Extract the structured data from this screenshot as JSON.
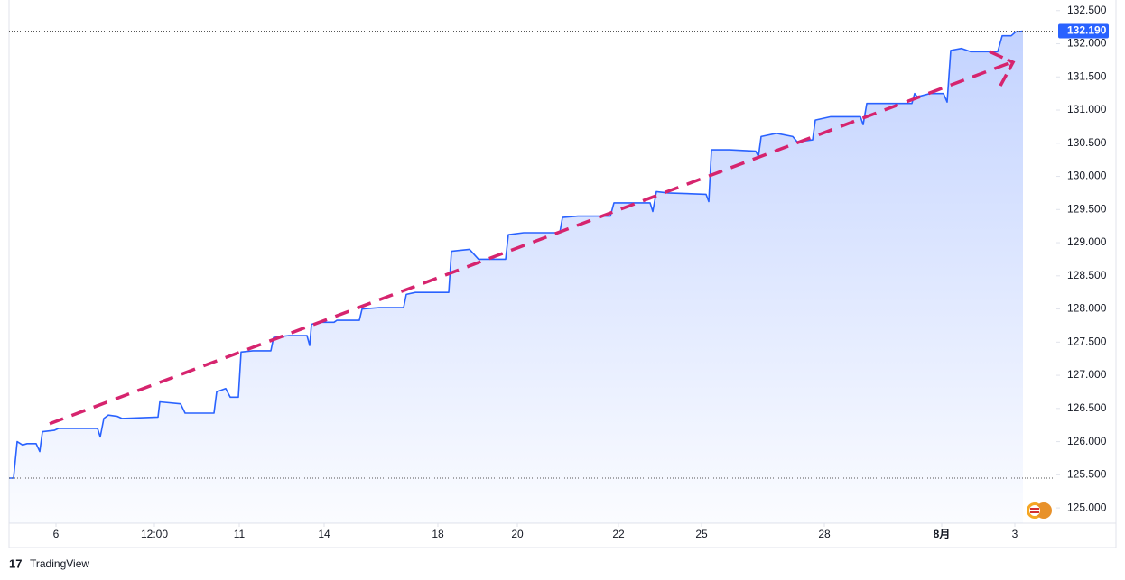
{
  "chart_data": {
    "type": "line",
    "color": "#2962ff",
    "x": [
      0,
      0.5,
      0.9,
      1.5,
      2,
      3,
      3.4,
      3.7,
      5,
      5.5,
      9.8,
      10.1,
      10.5,
      11,
      12,
      12.5,
      16.5,
      16.7,
      19,
      19.5,
      22.7,
      23,
      24,
      24.5,
      25.4,
      25.7,
      27,
      29,
      29.3,
      31,
      33,
      33.3,
      33.5,
      34.5,
      36,
      36.3,
      38.8,
      39.1,
      41,
      43.7,
      44,
      45,
      48.7,
      49,
      51,
      52,
      55,
      55.3,
      57,
      61,
      61.3,
      63,
      66.6,
      67,
      68.5,
      71,
      71.3,
      71.7,
      73,
      77.2,
      77.5,
      77.8,
      79.8,
      82.7,
      83,
      83.3,
      85,
      86.8,
      87.3,
      89,
      89.3,
      91,
      94.3,
      94.6,
      95,
      100,
      100.3,
      100.6,
      102,
      103.5,
      103.9,
      104.3,
      105.5,
      106.5,
      109.5,
      110,
      111,
      111.5,
      112.3
    ],
    "values": [
      125.45,
      125.45,
      126.0,
      125.95,
      125.97,
      125.97,
      125.85,
      126.15,
      126.17,
      126.2,
      126.2,
      126.07,
      126.35,
      126.4,
      126.38,
      126.35,
      126.37,
      126.6,
      126.57,
      126.43,
      126.43,
      126.75,
      126.8,
      126.67,
      126.67,
      127.35,
      127.37,
      127.37,
      127.57,
      127.6,
      127.6,
      127.45,
      127.77,
      127.8,
      127.8,
      127.83,
      127.83,
      128.0,
      128.02,
      128.02,
      128.22,
      128.25,
      128.25,
      128.87,
      128.9,
      128.75,
      128.75,
      129.12,
      129.15,
      129.15,
      129.38,
      129.4,
      129.4,
      129.6,
      129.6,
      129.6,
      129.47,
      129.77,
      129.75,
      129.73,
      129.62,
      130.4,
      130.4,
      130.38,
      130.3,
      130.6,
      130.65,
      130.6,
      130.52,
      130.55,
      130.85,
      130.9,
      130.9,
      130.78,
      131.1,
      131.1,
      131.25,
      131.2,
      131.25,
      131.25,
      131.12,
      131.9,
      131.93,
      131.88,
      131.88,
      132.12,
      132.12,
      132.18,
      132.19
    ],
    "xlim": [
      0,
      116
    ],
    "xticks": [
      {
        "value": 5.2,
        "label": "6"
      },
      {
        "value": 16.1,
        "label": "12:00"
      },
      {
        "value": 25.5,
        "label": "11"
      },
      {
        "value": 34.9,
        "label": "14"
      },
      {
        "value": 47.5,
        "label": "18"
      },
      {
        "value": 56.3,
        "label": "20"
      },
      {
        "value": 67.5,
        "label": "22"
      },
      {
        "value": 76.7,
        "label": "25"
      },
      {
        "value": 90.3,
        "label": "28"
      },
      {
        "value": 103.3,
        "label": "8月"
      },
      {
        "value": 111.4,
        "label": "3"
      }
    ],
    "ylim": [
      124.77,
      132.66
    ],
    "yticks": [
      {
        "value": 125,
        "label": "125.000"
      },
      {
        "value": 125.5,
        "label": "125.500"
      },
      {
        "value": 126,
        "label": "126.000"
      },
      {
        "value": 126.5,
        "label": "126.500"
      },
      {
        "value": 127,
        "label": "127.000"
      },
      {
        "value": 127.5,
        "label": "127.500"
      },
      {
        "value": 128,
        "label": "128.000"
      },
      {
        "value": 128.5,
        "label": "128.500"
      },
      {
        "value": 129,
        "label": "129.000"
      },
      {
        "value": 129.5,
        "label": "129.500"
      },
      {
        "value": 130,
        "label": "130.000"
      },
      {
        "value": 130.5,
        "label": "130.500"
      },
      {
        "value": 131,
        "label": "131.000"
      },
      {
        "value": 131.5,
        "label": "131.500"
      },
      {
        "value": 132,
        "label": "132.000"
      },
      {
        "value": 132.5,
        "label": "132.500"
      }
    ],
    "last_price": {
      "value": 132.19,
      "label": "132.190"
    },
    "baseline": 125.45,
    "trendline": {
      "x": [
        4.5,
        111
      ],
      "values": [
        126.27,
        131.72
      ],
      "color": "#d6246e"
    },
    "brand": "TradingView"
  }
}
